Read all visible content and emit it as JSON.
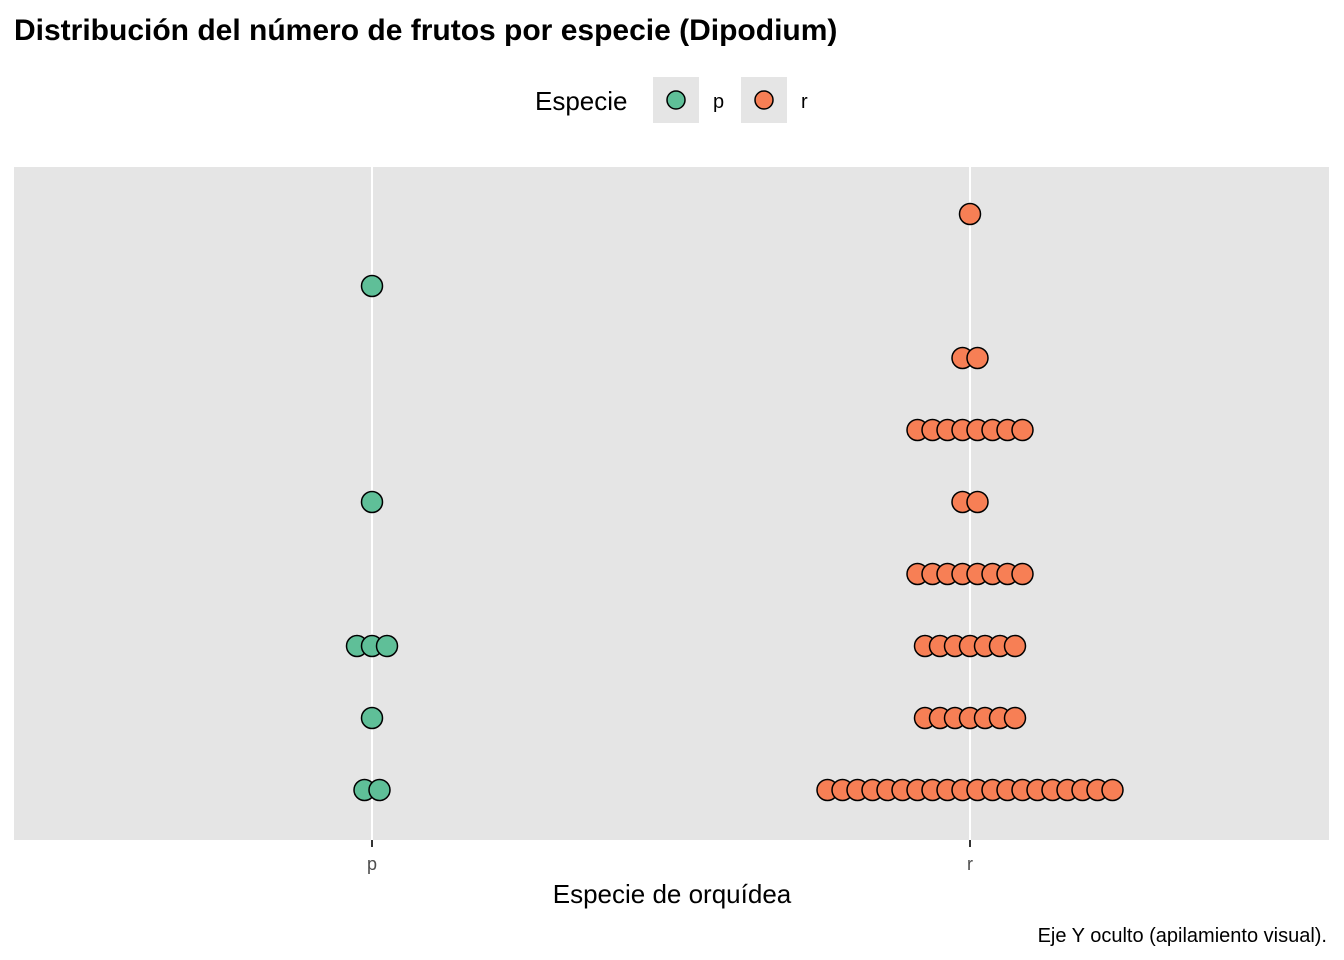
{
  "chart_data": {
    "type": "scatter",
    "subtype": "dotplot",
    "title": "Distribución del número de frutos por especie (Dipodium)",
    "xlabel": "Especie de orquídea",
    "ylabel": "",
    "caption": "Eje Y oculto (apilamiento visual).",
    "categories": [
      "p",
      "r"
    ],
    "legend": {
      "title": "Especie",
      "position": "top",
      "entries": [
        "p",
        "r"
      ]
    },
    "colors": {
      "p": "#5FBF98",
      "r": "#F77F55"
    },
    "y_levels": [
      0,
      1,
      2,
      3,
      4,
      5,
      6,
      7,
      8
    ],
    "series": [
      {
        "name": "p",
        "counts": [
          2,
          1,
          3,
          0,
          1,
          0,
          0,
          1,
          0
        ]
      },
      {
        "name": "r",
        "counts": [
          20,
          7,
          7,
          8,
          2,
          8,
          2,
          0,
          1
        ]
      }
    ],
    "grid": true
  }
}
